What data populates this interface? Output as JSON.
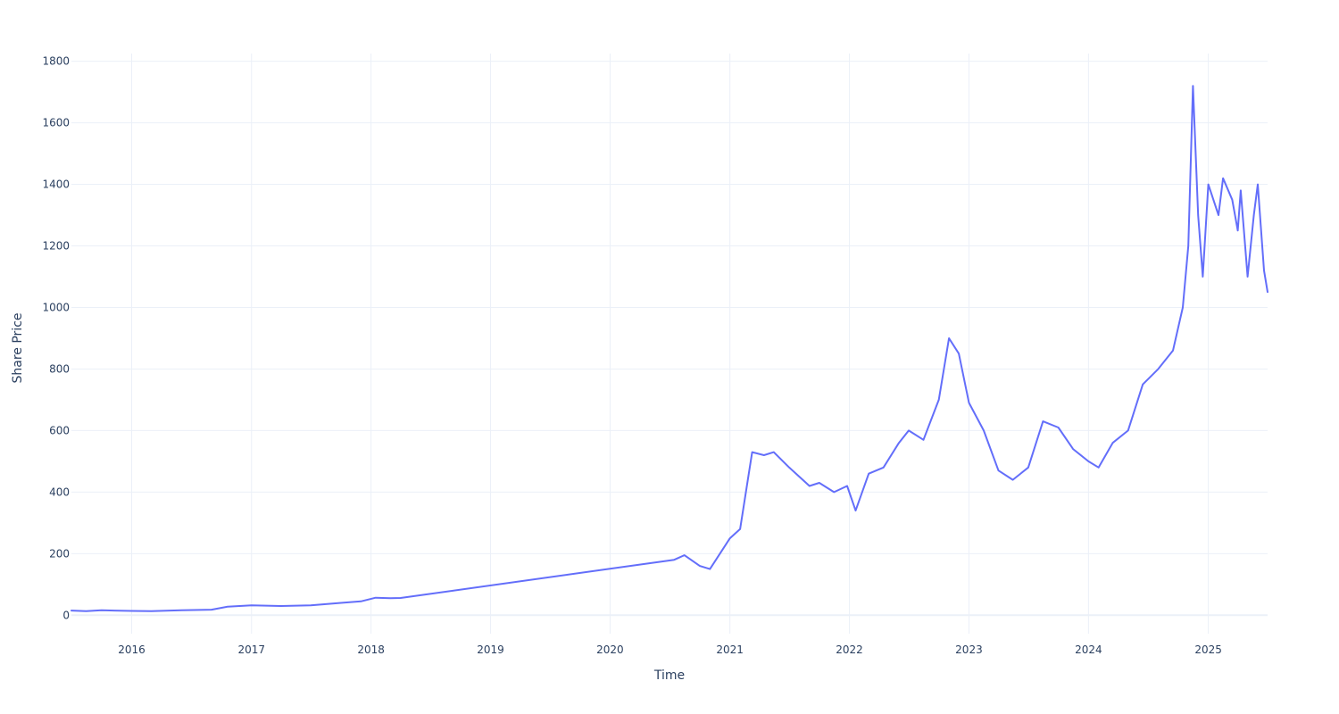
{
  "chart_data": {
    "type": "line",
    "xlabel": "Time",
    "ylabel": "Share Price",
    "xlim": [
      "2015-07-01",
      "2025-07-01"
    ],
    "ylim": [
      -60,
      1825
    ],
    "x_ticks": [
      "2016",
      "2017",
      "2018",
      "2019",
      "2020",
      "2021",
      "2022",
      "2023",
      "2024",
      "2025"
    ],
    "y_ticks": [
      0,
      200,
      400,
      600,
      800,
      1000,
      1200,
      1400,
      1600,
      1800
    ],
    "grid": true,
    "legend": "none",
    "series": [
      {
        "color": "#636efa",
        "x": [
          "2015-07-01",
          "2015-08-15",
          "2015-10-01",
          "2016-01-01",
          "2016-03-01",
          "2016-06-01",
          "2016-09-01",
          "2016-10-20",
          "2017-01-01",
          "2017-04-01",
          "2017-07-01",
          "2017-10-01",
          "2017-12-01",
          "2018-01-15",
          "2018-03-01",
          "2018-04-01",
          "2020-07-15",
          "2020-08-15",
          "2020-10-01",
          "2020-11-01",
          "2021-01-01",
          "2021-02-01",
          "2021-03-10",
          "2021-04-15",
          "2021-05-15",
          "2021-07-01",
          "2021-09-01",
          "2021-10-01",
          "2021-11-15",
          "2021-12-25",
          "2022-01-20",
          "2022-03-01",
          "2022-04-15",
          "2022-06-01",
          "2022-07-01",
          "2022-08-15",
          "2022-10-01",
          "2022-11-01",
          "2022-12-01",
          "2023-01-01",
          "2023-02-15",
          "2023-04-01",
          "2023-05-15",
          "2023-07-01",
          "2023-08-15",
          "2023-10-01",
          "2023-11-15",
          "2024-01-01",
          "2024-02-01",
          "2024-03-15",
          "2024-05-01",
          "2024-06-15",
          "2024-08-01",
          "2024-09-15",
          "2024-10-15",
          "2024-11-01",
          "2024-11-15",
          "2024-12-01",
          "2024-12-15",
          "2025-01-01",
          "2025-02-01",
          "2025-02-15",
          "2025-03-15",
          "2025-04-01",
          "2025-04-10",
          "2025-05-01",
          "2025-05-20",
          "2025-06-01",
          "2025-06-20",
          "2025-07-01"
        ],
        "y": [
          15,
          13,
          16,
          14,
          13,
          16,
          18,
          28,
          32,
          30,
          32,
          40,
          45,
          57,
          55,
          56,
          180,
          195,
          160,
          150,
          250,
          280,
          530,
          520,
          530,
          480,
          420,
          430,
          400,
          420,
          340,
          460,
          480,
          560,
          600,
          570,
          700,
          900,
          850,
          690,
          600,
          470,
          440,
          480,
          630,
          610,
          540,
          500,
          480,
          560,
          600,
          750,
          800,
          860,
          1000,
          1200,
          1720,
          1300,
          1100,
          1400,
          1300,
          1420,
          1350,
          1250,
          1380,
          1100,
          1300,
          1400,
          1120,
          1050
        ]
      }
    ]
  }
}
